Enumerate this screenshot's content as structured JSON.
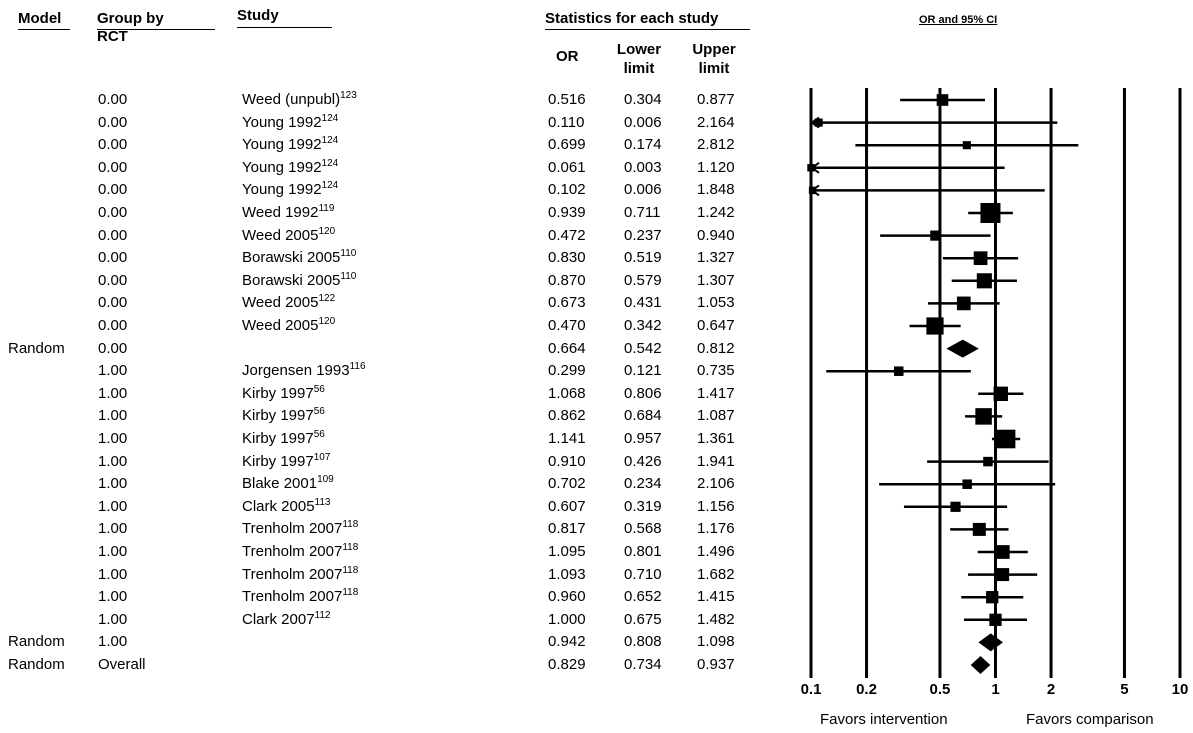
{
  "headers": {
    "model": "Model",
    "group": "Group by",
    "group2": "RCT",
    "study": "Study",
    "stats": "Statistics for each study",
    "or": "OR",
    "lower": "Lower limit",
    "upper": "Upper limit",
    "plot": "OR and 95% CI"
  },
  "rows": [
    {
      "model": "",
      "group": "0.00",
      "study": "Weed (unpubl)",
      "ref": "123",
      "or": "0.516",
      "lower": "0.304",
      "upper": "0.877"
    },
    {
      "model": "",
      "group": "0.00",
      "study": "Young 1992",
      "ref": "124",
      "or": "0.110",
      "lower": "0.006",
      "upper": "2.164"
    },
    {
      "model": "",
      "group": "0.00",
      "study": "Young 1992",
      "ref": "124",
      "or": "0.699",
      "lower": "0.174",
      "upper": "2.812"
    },
    {
      "model": "",
      "group": "0.00",
      "study": "Young 1992",
      "ref": "124",
      "or": "0.061",
      "lower": "0.003",
      "upper": "1.120"
    },
    {
      "model": "",
      "group": "0.00",
      "study": "Young 1992",
      "ref": "124",
      "or": "0.102",
      "lower": "0.006",
      "upper": "1.848"
    },
    {
      "model": "",
      "group": "0.00",
      "study": "Weed 1992",
      "ref": "119",
      "or": "0.939",
      "lower": "0.711",
      "upper": "1.242"
    },
    {
      "model": "",
      "group": "0.00",
      "study": "Weed 2005",
      "ref": "120",
      "or": "0.472",
      "lower": "0.237",
      "upper": "0.940"
    },
    {
      "model": "",
      "group": "0.00",
      "study": "Borawski 2005",
      "ref": "110",
      "or": "0.830",
      "lower": "0.519",
      "upper": "1.327"
    },
    {
      "model": "",
      "group": "0.00",
      "study": "Borawski 2005",
      "ref": "110",
      "or": "0.870",
      "lower": "0.579",
      "upper": "1.307"
    },
    {
      "model": "",
      "group": "0.00",
      "study": "Weed 2005",
      "ref": "122",
      "or": "0.673",
      "lower": "0.431",
      "upper": "1.053"
    },
    {
      "model": "",
      "group": "0.00",
      "study": "Weed 2005",
      "ref": "120",
      "or": "0.470",
      "lower": "0.342",
      "upper": "0.647"
    },
    {
      "model": "Random",
      "group": "0.00",
      "study": "",
      "ref": "",
      "or": "0.664",
      "lower": "0.542",
      "upper": "0.812"
    },
    {
      "model": "",
      "group": "1.00",
      "study": "Jorgensen 1993",
      "ref": "116",
      "or": "0.299",
      "lower": "0.121",
      "upper": "0.735"
    },
    {
      "model": "",
      "group": "1.00",
      "study": "Kirby 1997",
      "ref": "56",
      "or": "1.068",
      "lower": "0.806",
      "upper": "1.417"
    },
    {
      "model": "",
      "group": "1.00",
      "study": "Kirby 1997",
      "ref": "56",
      "or": "0.862",
      "lower": "0.684",
      "upper": "1.087"
    },
    {
      "model": "",
      "group": "1.00",
      "study": "Kirby 1997",
      "ref": "56",
      "or": "1.141",
      "lower": "0.957",
      "upper": "1.361"
    },
    {
      "model": "",
      "group": "1.00",
      "study": "Kirby 1997",
      "ref": "107",
      "or": "0.910",
      "lower": "0.426",
      "upper": "1.941"
    },
    {
      "model": "",
      "group": "1.00",
      "study": "Blake 2001",
      "ref": "109",
      "or": "0.702",
      "lower": "0.234",
      "upper": "2.106"
    },
    {
      "model": "",
      "group": "1.00",
      "study": "Clark 2005",
      "ref": "113",
      "or": "0.607",
      "lower": "0.319",
      "upper": "1.156"
    },
    {
      "model": "",
      "group": "1.00",
      "study": "Trenholm 2007",
      "ref": "118",
      "or": "0.817",
      "lower": "0.568",
      "upper": "1.176"
    },
    {
      "model": "",
      "group": "1.00",
      "study": "Trenholm 2007",
      "ref": "118",
      "or": "1.095",
      "lower": "0.801",
      "upper": "1.496"
    },
    {
      "model": "",
      "group": "1.00",
      "study": "Trenholm 2007",
      "ref": "118",
      "or": "1.093",
      "lower": "0.710",
      "upper": "1.682"
    },
    {
      "model": "",
      "group": "1.00",
      "study": "Trenholm 2007",
      "ref": "118",
      "or": "0.960",
      "lower": "0.652",
      "upper": "1.415"
    },
    {
      "model": "",
      "group": "1.00",
      "study": "Clark 2007",
      "ref": "112",
      "or": "1.000",
      "lower": "0.675",
      "upper": "1.482"
    },
    {
      "model": "Random",
      "group": "1.00",
      "study": "",
      "ref": "",
      "or": "0.942",
      "lower": "0.808",
      "upper": "1.098"
    },
    {
      "model": "Random",
      "group": "Overall",
      "study": "",
      "ref": "",
      "or": "0.829",
      "lower": "0.734",
      "upper": "0.937"
    }
  ],
  "chart_data": {
    "type": "forest",
    "title": "OR and 95% CI",
    "scale": "log",
    "xlim": [
      0.1,
      10
    ],
    "ticks": [
      0.1,
      0.2,
      0.5,
      1,
      2,
      5,
      10
    ],
    "tick_labels": [
      "0.1",
      "0.2",
      "0.5",
      "1",
      "2",
      "5",
      "10"
    ],
    "favors_left": "Favors intervention",
    "favors_right": "Favors comparison",
    "studies": [
      {
        "or": 0.516,
        "lower": 0.304,
        "upper": 0.877,
        "summary": false,
        "weight": 0.4
      },
      {
        "or": 0.11,
        "lower": 0.006,
        "upper": 2.164,
        "summary": false,
        "weight": 0.15
      },
      {
        "or": 0.699,
        "lower": 0.174,
        "upper": 2.812,
        "summary": false,
        "weight": 0.15
      },
      {
        "or": 0.061,
        "lower": 0.003,
        "upper": 1.12,
        "summary": false,
        "weight": 0.1
      },
      {
        "or": 0.102,
        "lower": 0.006,
        "upper": 1.848,
        "summary": false,
        "weight": 0.1
      },
      {
        "or": 0.939,
        "lower": 0.711,
        "upper": 1.242,
        "summary": false,
        "weight": 1.0
      },
      {
        "or": 0.472,
        "lower": 0.237,
        "upper": 0.94,
        "summary": false,
        "weight": 0.3
      },
      {
        "or": 0.83,
        "lower": 0.519,
        "upper": 1.327,
        "summary": false,
        "weight": 0.55
      },
      {
        "or": 0.87,
        "lower": 0.579,
        "upper": 1.307,
        "summary": false,
        "weight": 0.65
      },
      {
        "or": 0.673,
        "lower": 0.431,
        "upper": 1.053,
        "summary": false,
        "weight": 0.55
      },
      {
        "or": 0.47,
        "lower": 0.342,
        "upper": 0.647,
        "summary": false,
        "weight": 0.8
      },
      {
        "or": 0.664,
        "lower": 0.542,
        "upper": 0.812,
        "summary": true,
        "weight": 1.0
      },
      {
        "or": 0.299,
        "lower": 0.121,
        "upper": 0.735,
        "summary": false,
        "weight": 0.25
      },
      {
        "or": 1.068,
        "lower": 0.806,
        "upper": 1.417,
        "summary": false,
        "weight": 0.6
      },
      {
        "or": 0.862,
        "lower": 0.684,
        "upper": 1.087,
        "summary": false,
        "weight": 0.75
      },
      {
        "or": 1.141,
        "lower": 0.957,
        "upper": 1.361,
        "summary": false,
        "weight": 0.9
      },
      {
        "or": 0.91,
        "lower": 0.426,
        "upper": 1.941,
        "summary": false,
        "weight": 0.25
      },
      {
        "or": 0.702,
        "lower": 0.234,
        "upper": 2.106,
        "summary": false,
        "weight": 0.25
      },
      {
        "or": 0.607,
        "lower": 0.319,
        "upper": 1.156,
        "summary": false,
        "weight": 0.3
      },
      {
        "or": 0.817,
        "lower": 0.568,
        "upper": 1.176,
        "summary": false,
        "weight": 0.5
      },
      {
        "or": 1.095,
        "lower": 0.801,
        "upper": 1.496,
        "summary": false,
        "weight": 0.55
      },
      {
        "or": 1.093,
        "lower": 0.71,
        "upper": 1.682,
        "summary": false,
        "weight": 0.5
      },
      {
        "or": 0.96,
        "lower": 0.652,
        "upper": 1.415,
        "summary": false,
        "weight": 0.45
      },
      {
        "or": 1.0,
        "lower": 0.675,
        "upper": 1.482,
        "summary": false,
        "weight": 0.45
      },
      {
        "or": 0.942,
        "lower": 0.808,
        "upper": 1.098,
        "summary": true,
        "weight": 1.0
      },
      {
        "or": 0.829,
        "lower": 0.734,
        "upper": 0.937,
        "summary": true,
        "weight": 1.0
      }
    ]
  }
}
